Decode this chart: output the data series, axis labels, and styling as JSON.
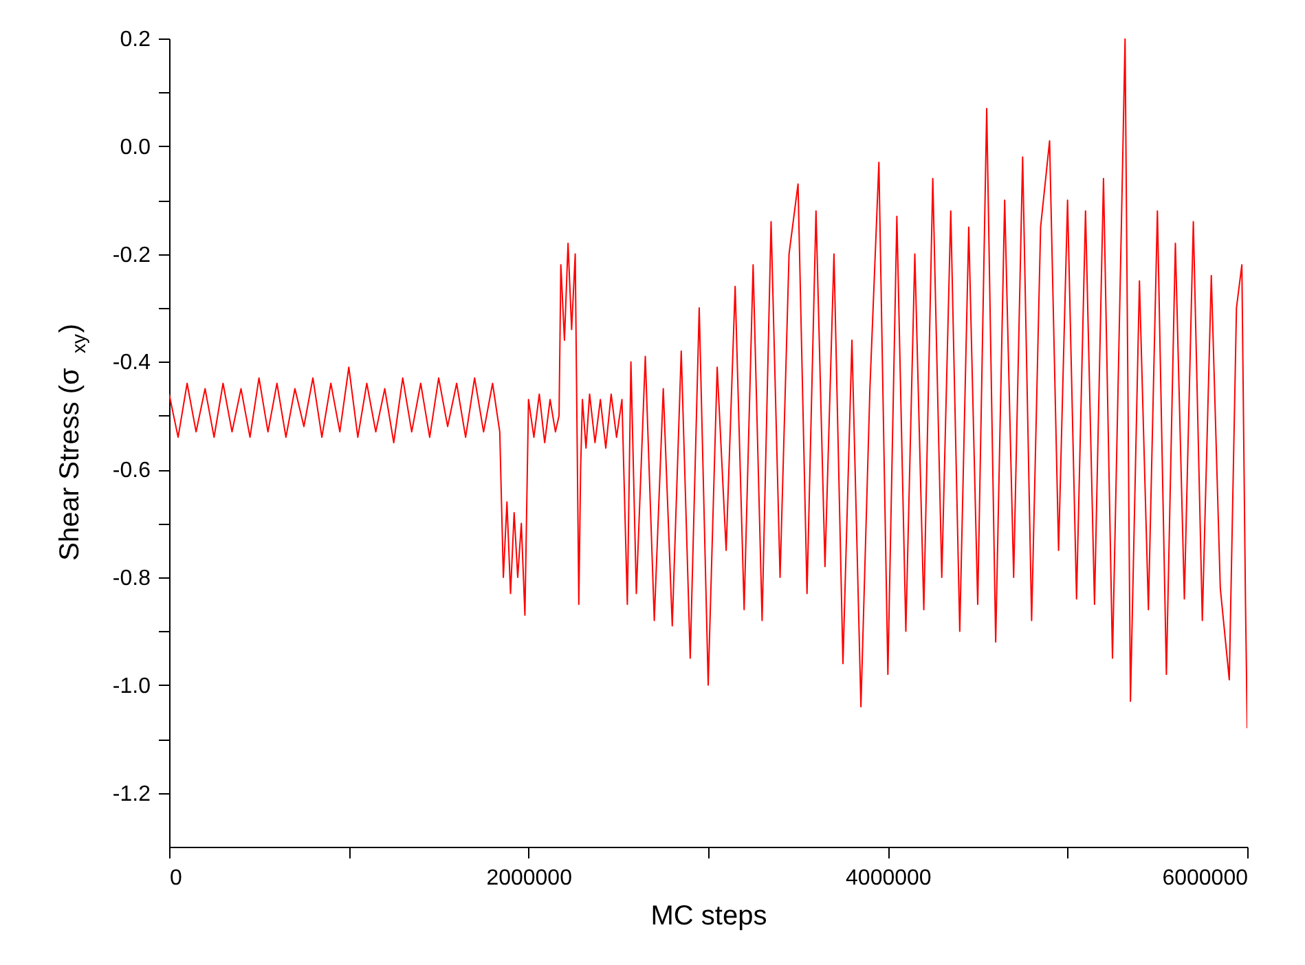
{
  "chart_data": {
    "type": "line",
    "xlabel": "MC steps",
    "ylabel": "Shear Stress (σ$_{xy}$)",
    "x": [
      0,
      50000,
      100000,
      150000,
      200000,
      250000,
      300000,
      350000,
      400000,
      450000,
      500000,
      550000,
      600000,
      650000,
      700000,
      750000,
      800000,
      850000,
      900000,
      950000,
      1000000,
      1050000,
      1100000,
      1150000,
      1200000,
      1250000,
      1300000,
      1350000,
      1400000,
      1450000,
      1500000,
      1550000,
      1600000,
      1650000,
      1700000,
      1750000,
      1800000,
      1840000,
      1860000,
      1880000,
      1900000,
      1920000,
      1940000,
      1960000,
      1980000,
      2000000,
      2030000,
      2060000,
      2090000,
      2120000,
      2150000,
      2170000,
      2180000,
      2200000,
      2220000,
      2240000,
      2260000,
      2280000,
      2290000,
      2300000,
      2320000,
      2340000,
      2370000,
      2400000,
      2430000,
      2460000,
      2490000,
      2520000,
      2550000,
      2570000,
      2600000,
      2650000,
      2700000,
      2750000,
      2800000,
      2850000,
      2900000,
      2950000,
      3000000,
      3050000,
      3100000,
      3150000,
      3200000,
      3250000,
      3300000,
      3350000,
      3400000,
      3450000,
      3500000,
      3550000,
      3600000,
      3650000,
      3700000,
      3750000,
      3800000,
      3850000,
      3900000,
      3950000,
      4000000,
      4050000,
      4100000,
      4150000,
      4200000,
      4250000,
      4300000,
      4350000,
      4400000,
      4450000,
      4500000,
      4550000,
      4600000,
      4650000,
      4700000,
      4750000,
      4800000,
      4850000,
      4900000,
      4950000,
      5000000,
      5050000,
      5100000,
      5150000,
      5200000,
      5250000,
      5300000,
      5320000,
      5350000,
      5400000,
      5450000,
      5500000,
      5550000,
      5600000,
      5650000,
      5700000,
      5750000,
      5800000,
      5850000,
      5900000,
      5940000,
      5970000,
      5990000,
      6000000
    ],
    "series": [
      {
        "color": "#ff0000",
        "values": [
          -0.46,
          -0.54,
          -0.44,
          -0.53,
          -0.45,
          -0.54,
          -0.44,
          -0.53,
          -0.45,
          -0.54,
          -0.43,
          -0.53,
          -0.44,
          -0.54,
          -0.45,
          -0.52,
          -0.43,
          -0.54,
          -0.44,
          -0.53,
          -0.41,
          -0.54,
          -0.44,
          -0.53,
          -0.45,
          -0.55,
          -0.43,
          -0.53,
          -0.44,
          -0.54,
          -0.43,
          -0.52,
          -0.44,
          -0.54,
          -0.43,
          -0.53,
          -0.44,
          -0.53,
          -0.8,
          -0.66,
          -0.83,
          -0.68,
          -0.8,
          -0.7,
          -0.87,
          -0.47,
          -0.54,
          -0.46,
          -0.55,
          -0.47,
          -0.53,
          -0.5,
          -0.22,
          -0.36,
          -0.18,
          -0.34,
          -0.2,
          -0.85,
          -0.6,
          -0.47,
          -0.56,
          -0.46,
          -0.55,
          -0.47,
          -0.56,
          -0.46,
          -0.54,
          -0.47,
          -0.85,
          -0.4,
          -0.83,
          -0.39,
          -0.88,
          -0.45,
          -0.89,
          -0.38,
          -0.95,
          -0.3,
          -1.0,
          -0.41,
          -0.75,
          -0.26,
          -0.86,
          -0.22,
          -0.88,
          -0.14,
          -0.8,
          -0.2,
          -0.07,
          -0.83,
          -0.12,
          -0.78,
          -0.2,
          -0.96,
          -0.36,
          -1.04,
          -0.45,
          -0.03,
          -0.98,
          -0.13,
          -0.9,
          -0.2,
          -0.86,
          -0.06,
          -0.8,
          -0.12,
          -0.9,
          -0.15,
          -0.85,
          0.07,
          -0.92,
          -0.1,
          -0.8,
          -0.02,
          -0.88,
          -0.15,
          0.01,
          -0.75,
          -0.1,
          -0.84,
          -0.12,
          -0.85,
          -0.06,
          -0.95,
          -0.14,
          0.2,
          -1.03,
          -0.25,
          -0.86,
          -0.12,
          -0.98,
          -0.18,
          -0.84,
          -0.14,
          -0.88,
          -0.24,
          -0.82,
          -0.99,
          -0.3,
          -0.22,
          -0.84,
          -1.08
        ]
      }
    ],
    "xlim": [
      0,
      6000000
    ],
    "ylim": [
      -1.3,
      0.2
    ],
    "xticks": [
      0,
      {
        "value": 1000000,
        "label": null
      },
      2000000,
      {
        "value": 3000000,
        "label": null
      },
      4000000,
      {
        "value": 5000000,
        "label": null
      },
      6000000
    ],
    "yticks": [
      {
        "value": 0.2,
        "label": "0.2"
      },
      {
        "value": 0.1,
        "label": null
      },
      {
        "value": 0,
        "label": "0.0"
      },
      {
        "value": -0.1,
        "label": null
      },
      {
        "value": -0.2,
        "label": "-0.2"
      },
      {
        "value": -0.3,
        "label": null
      },
      {
        "value": -0.4,
        "label": "-0.4"
      },
      {
        "value": -0.5,
        "label": null
      },
      {
        "value": -0.6,
        "label": "-0.6"
      },
      {
        "value": -0.7,
        "label": null
      },
      {
        "value": -0.8,
        "label": "-0.8"
      },
      {
        "value": -0.9,
        "label": null
      },
      {
        "value": -1.0,
        "label": "-1.0"
      },
      {
        "value": -1.1,
        "label": null
      },
      {
        "value": -1.2,
        "label": "-1.2"
      }
    ],
    "grid": false,
    "marker": "none",
    "line_style": "solid"
  }
}
